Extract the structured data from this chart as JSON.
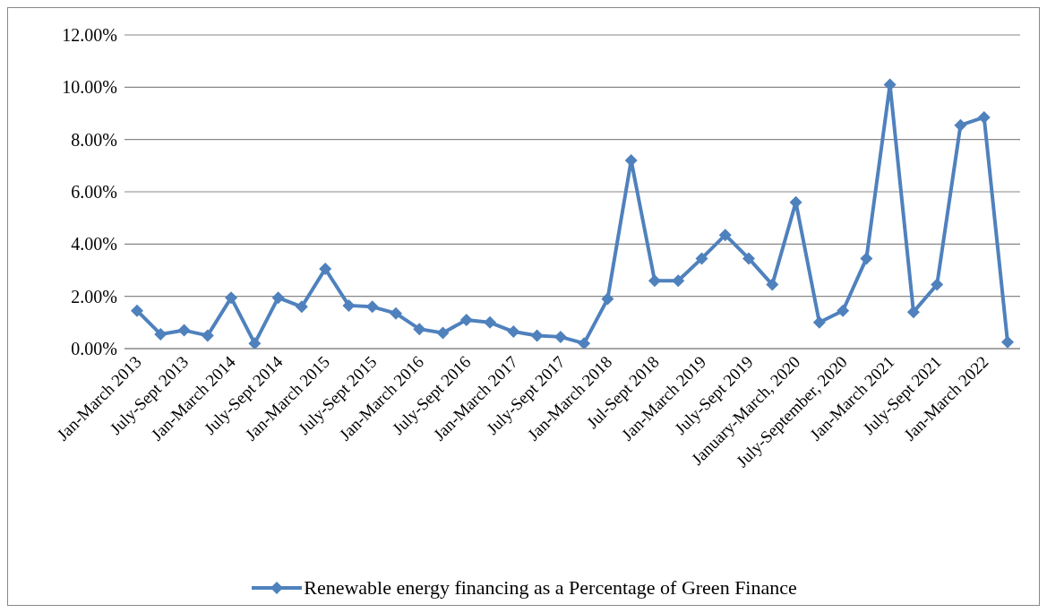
{
  "chart_data": {
    "type": "line",
    "categories": [
      "Jan-March 2013",
      null,
      "July-Sept 2013",
      null,
      "Jan-March 2014",
      null,
      "July-Sept 2014",
      null,
      "Jan-March 2015",
      null,
      "July-Sept 2015",
      null,
      "Jan-March 2016",
      null,
      "July-Sept 2016",
      null,
      "Jan-March 2017",
      null,
      "July-Sept 2017",
      null,
      "Jan-March 2018",
      null,
      "Jul-Sept 2018",
      null,
      "Jan-March 2019",
      null,
      "July-Sept 2019",
      null,
      "January-March, 2020",
      null,
      "July-September, 2020",
      null,
      "Jan-March 2021",
      null,
      "July-Sept 2021",
      null,
      "Jan-March 2022",
      null
    ],
    "series": [
      {
        "name": "Renewable energy financing as a Percentage of Green Finance",
        "color": "#4f81bd",
        "values": [
          1.45,
          0.55,
          0.7,
          0.5,
          1.95,
          0.2,
          1.95,
          1.6,
          3.05,
          1.65,
          1.6,
          1.35,
          0.75,
          0.6,
          1.1,
          1.0,
          0.65,
          0.5,
          0.45,
          0.2,
          1.9,
          7.2,
          2.6,
          2.6,
          3.45,
          4.35,
          3.45,
          2.45,
          5.6,
          1.0,
          1.45,
          3.45,
          10.1,
          1.4,
          2.45,
          8.55,
          8.85,
          0.25
        ]
      }
    ],
    "ylim": [
      0,
      12
    ],
    "yticks": [
      {
        "value": 0,
        "label": "0.00%"
      },
      {
        "value": 2,
        "label": "2.00%"
      },
      {
        "value": 4,
        "label": "4.00%"
      },
      {
        "value": 6,
        "label": "6.00%"
      },
      {
        "value": 8,
        "label": "8.00%"
      },
      {
        "value": 10,
        "label": "10.00%"
      },
      {
        "value": 12,
        "label": "12.00%"
      }
    ],
    "grid": "y",
    "legend": "bottom",
    "marker": "diamond",
    "line_style": "solid"
  }
}
